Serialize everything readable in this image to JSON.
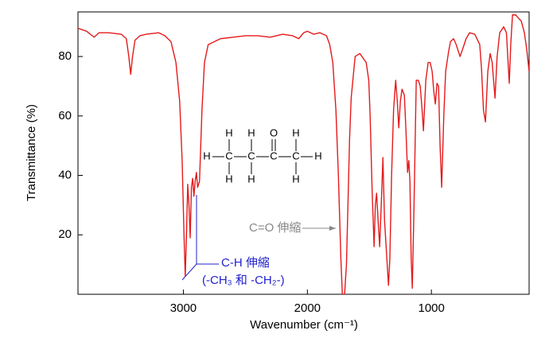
{
  "chart_data": {
    "type": "line",
    "xlabel": "Wavenumber (cm⁻¹)",
    "ylabel": "Transmittance (%)",
    "color": "#e41a1c",
    "xlim": [
      3850,
      212
    ],
    "ylim": [
      0,
      95
    ],
    "xticks": [
      3000,
      2000,
      1000
    ],
    "yticks": [
      20,
      40,
      60,
      80
    ],
    "annotations": {
      "co": "C=O 伸縮",
      "ch": "C-H 伸縮",
      "ch_detail": "(-CH₃ 和 -CH₂-)"
    },
    "structure": {
      "atoms": [
        "H",
        "C",
        "C",
        "C",
        "C",
        "H",
        "H",
        "H",
        "O",
        "H",
        "H",
        "H",
        "H"
      ]
    },
    "x": [
      3850,
      3780,
      3720,
      3680,
      3600,
      3500,
      3460,
      3440,
      3425,
      3410,
      3390,
      3350,
      3300,
      3200,
      3150,
      3100,
      3060,
      3030,
      3010,
      2995,
      2985,
      2975,
      2965,
      2955,
      2945,
      2935,
      2925,
      2915,
      2905,
      2895,
      2885,
      2870,
      2850,
      2830,
      2800,
      2700,
      2600,
      2500,
      2400,
      2300,
      2200,
      2120,
      2070,
      2030,
      2000,
      1950,
      1900,
      1846,
      1820,
      1795,
      1770,
      1750,
      1730,
      1718,
      1700,
      1685,
      1673,
      1660,
      1647,
      1615,
      1577,
      1526,
      1505,
      1494,
      1478,
      1462,
      1452,
      1442,
      1430,
      1417,
      1400,
      1391,
      1378,
      1365,
      1346,
      1335,
      1321,
      1305,
      1288,
      1275,
      1263,
      1250,
      1237,
      1218,
      1205,
      1192,
      1182,
      1173,
      1163,
      1154,
      1140,
      1122,
      1105,
      1090,
      1075,
      1064,
      1045,
      1026,
      1010,
      994,
      980,
      968,
      955,
      942,
      930,
      917,
      900,
      885,
      860,
      846,
      821,
      800,
      769,
      744,
      720,
      692,
      650,
      610,
      596,
      580,
      564,
      545,
      526,
      510,
      487,
      470,
      449,
      417,
      395,
      372,
      360,
      346,
      320,
      300,
      276,
      250,
      230,
      212
    ],
    "values": [
      89.5,
      88.5,
      86.5,
      88,
      88,
      87.5,
      86,
      80,
      74,
      80,
      85.5,
      87,
      87.5,
      88,
      87,
      85,
      78,
      65,
      45,
      20,
      6,
      20,
      37,
      30,
      19,
      36,
      39,
      33,
      38,
      41,
      36,
      38,
      62,
      78,
      84,
      86,
      86.5,
      87,
      87,
      86.5,
      87.5,
      87,
      86,
      88,
      88.5,
      87.5,
      88,
      87,
      84,
      78,
      62,
      40,
      12,
      0,
      0,
      10,
      30,
      52,
      66,
      80,
      81,
      78,
      72,
      60,
      35,
      16,
      30,
      34,
      25,
      16,
      35,
      46,
      25,
      16,
      3,
      12,
      40,
      62,
      72,
      65,
      56,
      65,
      69,
      67,
      55,
      41,
      45,
      38,
      12,
      2,
      30,
      72,
      72,
      70,
      62,
      55,
      72,
      78,
      78,
      75,
      68,
      64,
      71,
      70,
      50,
      36,
      60,
      75,
      82,
      85,
      86,
      84,
      80,
      83,
      86,
      88,
      87.5,
      84,
      76,
      62,
      58,
      75,
      81,
      78,
      66,
      80,
      88,
      90,
      88,
      71,
      84,
      94,
      94,
      93,
      92,
      88,
      82,
      75
    ]
  }
}
